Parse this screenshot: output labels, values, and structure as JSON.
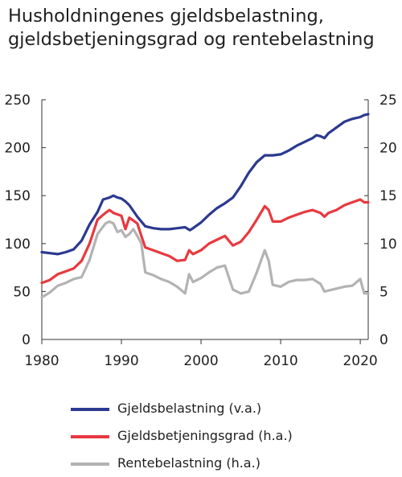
{
  "chart_data": {
    "type": "line",
    "title": [
      "Husholdningenes gjeldsbelastning,",
      "gjeldsbetjeningsgrad og rentebelastning"
    ],
    "xlabel": "",
    "ylabel_left": "",
    "ylabel_right": "",
    "xlim": [
      1980,
      2021
    ],
    "ylim_left": [
      0,
      250
    ],
    "ylim_right": [
      0,
      25
    ],
    "x_ticks": [
      1980,
      1990,
      2000,
      2010,
      2020
    ],
    "y_ticks_left": [
      0,
      50,
      100,
      150,
      200,
      250
    ],
    "y_ticks_right": [
      0,
      5,
      10,
      15,
      20,
      25
    ],
    "grid": false,
    "legend_position": "bottom",
    "series": [
      {
        "name": "Gjeldsbelastning (v.a.)",
        "axis": "left",
        "color": "#2b3990",
        "points": [
          [
            1980,
            91
          ],
          [
            1981,
            90
          ],
          [
            1982,
            89
          ],
          [
            1983,
            91
          ],
          [
            1984,
            94
          ],
          [
            1985,
            103
          ],
          [
            1986,
            120
          ],
          [
            1987,
            133
          ],
          [
            1987.7,
            146
          ],
          [
            1988.5,
            148
          ],
          [
            1989,
            150
          ],
          [
            1989.5,
            148
          ],
          [
            1990,
            147
          ],
          [
            1990.5,
            144
          ],
          [
            1991,
            140
          ],
          [
            1992,
            128
          ],
          [
            1993,
            118
          ],
          [
            1994,
            116
          ],
          [
            1995,
            115
          ],
          [
            1996,
            115
          ],
          [
            1997,
            116
          ],
          [
            1998,
            117
          ],
          [
            1998.6,
            114
          ],
          [
            1999,
            116
          ],
          [
            2000,
            122
          ],
          [
            2001,
            130
          ],
          [
            2002,
            137
          ],
          [
            2003,
            142
          ],
          [
            2004,
            148
          ],
          [
            2005,
            160
          ],
          [
            2006,
            174
          ],
          [
            2007,
            185
          ],
          [
            2008,
            192
          ],
          [
            2009,
            192
          ],
          [
            2010,
            193
          ],
          [
            2011,
            197
          ],
          [
            2012,
            202
          ],
          [
            2013,
            206
          ],
          [
            2014,
            210
          ],
          [
            2014.5,
            213
          ],
          [
            2015,
            212
          ],
          [
            2015.5,
            210
          ],
          [
            2016,
            215
          ],
          [
            2017,
            221
          ],
          [
            2018,
            227
          ],
          [
            2019,
            230
          ],
          [
            2020,
            232
          ],
          [
            2020.5,
            234
          ],
          [
            2021,
            235
          ]
        ]
      },
      {
        "name": "Gjeldsbetjeningsgrad (h.a.)",
        "axis": "right",
        "color": "#e8393f",
        "points": [
          [
            1980,
            5.9
          ],
          [
            1981,
            6.2
          ],
          [
            1982,
            6.8
          ],
          [
            1983,
            7.1
          ],
          [
            1984,
            7.4
          ],
          [
            1985,
            8.2
          ],
          [
            1986,
            10.0
          ],
          [
            1987,
            12.5
          ],
          [
            1988,
            13.2
          ],
          [
            1988.5,
            13.5
          ],
          [
            1989,
            13.2
          ],
          [
            1990,
            12.9
          ],
          [
            1990.5,
            11.5
          ],
          [
            1991,
            12.7
          ],
          [
            1992,
            12.1
          ],
          [
            1992.5,
            10.8
          ],
          [
            1993,
            9.6
          ],
          [
            1994,
            9.3
          ],
          [
            1995,
            9.0
          ],
          [
            1996,
            8.7
          ],
          [
            1997,
            8.2
          ],
          [
            1998,
            8.3
          ],
          [
            1998.5,
            9.3
          ],
          [
            1999,
            8.9
          ],
          [
            2000,
            9.3
          ],
          [
            2001,
            10.0
          ],
          [
            2002,
            10.4
          ],
          [
            2003,
            10.8
          ],
          [
            2004,
            9.8
          ],
          [
            2005,
            10.2
          ],
          [
            2006,
            11.2
          ],
          [
            2007,
            12.5
          ],
          [
            2008,
            13.9
          ],
          [
            2008.5,
            13.5
          ],
          [
            2009,
            12.3
          ],
          [
            2010,
            12.3
          ],
          [
            2011,
            12.7
          ],
          [
            2012,
            13.0
          ],
          [
            2013,
            13.3
          ],
          [
            2014,
            13.5
          ],
          [
            2015,
            13.2
          ],
          [
            2015.5,
            12.8
          ],
          [
            2016,
            13.2
          ],
          [
            2017,
            13.5
          ],
          [
            2018,
            14.0
          ],
          [
            2019,
            14.3
          ],
          [
            2020,
            14.6
          ],
          [
            2020.5,
            14.3
          ],
          [
            2021,
            14.3
          ]
        ]
      },
      {
        "name": "Rentebelastning (h.a.)",
        "axis": "right",
        "color": "#b3b3b3",
        "points": [
          [
            1980,
            4.4
          ],
          [
            1981,
            4.9
          ],
          [
            1982,
            5.6
          ],
          [
            1983,
            5.9
          ],
          [
            1984,
            6.3
          ],
          [
            1985,
            6.5
          ],
          [
            1986,
            8.3
          ],
          [
            1987,
            11.0
          ],
          [
            1988,
            12.1
          ],
          [
            1988.5,
            12.3
          ],
          [
            1989,
            12.1
          ],
          [
            1989.5,
            11.2
          ],
          [
            1990,
            11.4
          ],
          [
            1990.5,
            10.7
          ],
          [
            1991,
            11.0
          ],
          [
            1991.5,
            11.5
          ],
          [
            1992,
            10.8
          ],
          [
            1992.5,
            10.0
          ],
          [
            1993,
            7.0
          ],
          [
            1994,
            6.7
          ],
          [
            1995,
            6.3
          ],
          [
            1996,
            6.0
          ],
          [
            1997,
            5.5
          ],
          [
            1998,
            4.8
          ],
          [
            1998.5,
            6.8
          ],
          [
            1999,
            6.0
          ],
          [
            2000,
            6.4
          ],
          [
            2001,
            7.0
          ],
          [
            2002,
            7.5
          ],
          [
            2003,
            7.7
          ],
          [
            2004,
            5.2
          ],
          [
            2005,
            4.8
          ],
          [
            2006,
            5.0
          ],
          [
            2007,
            7.0
          ],
          [
            2008,
            9.3
          ],
          [
            2008.5,
            8.2
          ],
          [
            2009,
            5.7
          ],
          [
            2010,
            5.5
          ],
          [
            2011,
            6.0
          ],
          [
            2012,
            6.2
          ],
          [
            2013,
            6.2
          ],
          [
            2014,
            6.3
          ],
          [
            2015,
            5.8
          ],
          [
            2015.5,
            5.0
          ],
          [
            2016,
            5.1
          ],
          [
            2017,
            5.3
          ],
          [
            2018,
            5.5
          ],
          [
            2019,
            5.6
          ],
          [
            2020,
            6.3
          ],
          [
            2020.5,
            4.8
          ],
          [
            2021,
            4.8
          ]
        ]
      }
    ]
  }
}
